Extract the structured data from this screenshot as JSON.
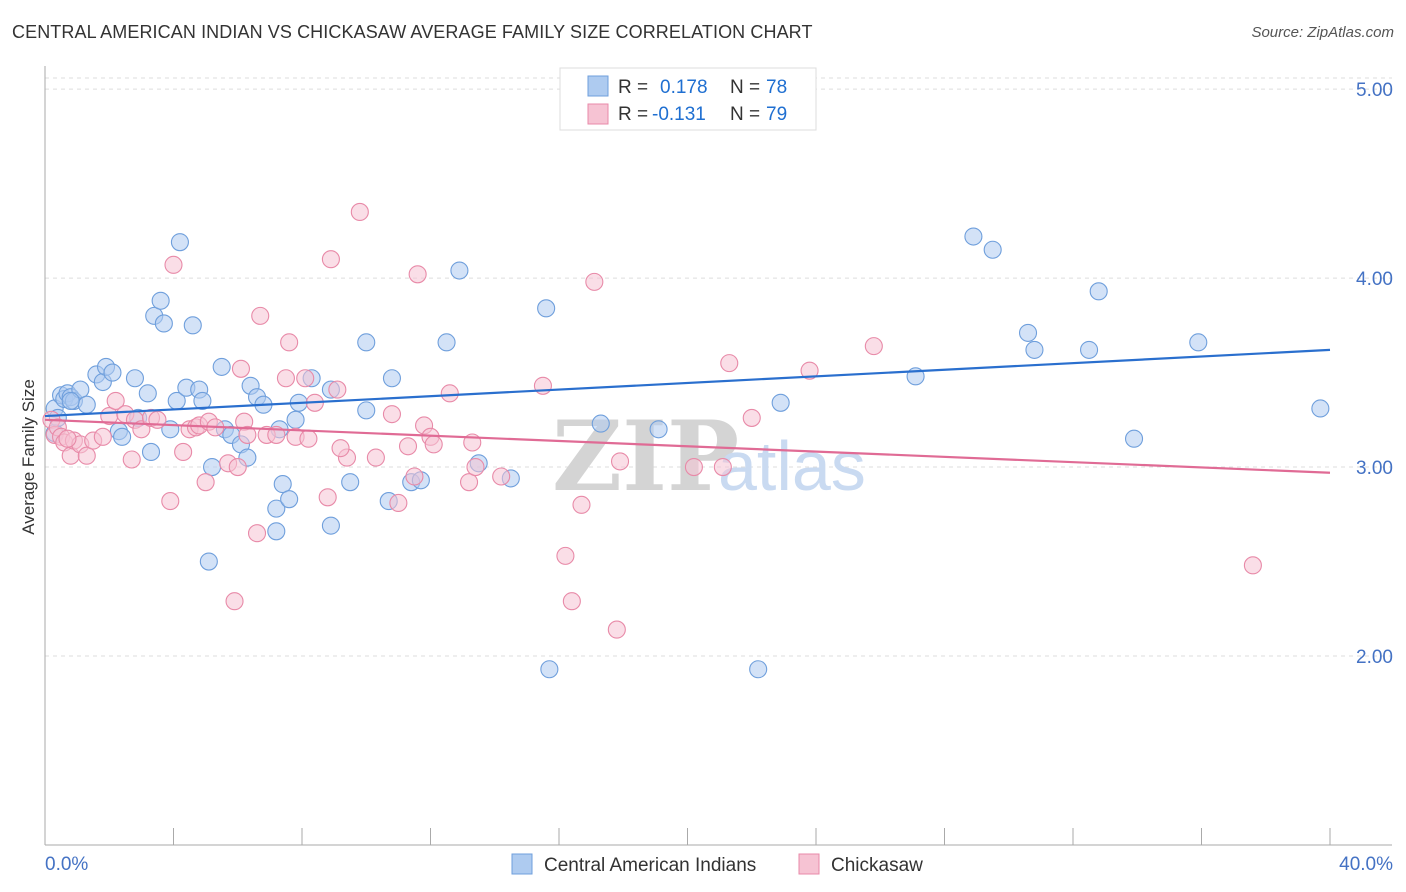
{
  "title": "CENTRAL AMERICAN INDIAN VS CHICKASAW AVERAGE FAMILY SIZE CORRELATION CHART",
  "source": "Source: ZipAtlas.com",
  "watermark": {
    "zip": "ZIP",
    "atlas": "atlas"
  },
  "legend": {
    "r_label": "R =",
    "n_label": "N =",
    "rows": [
      {
        "r": "0.178",
        "n": "78"
      },
      {
        "r": "-0.131",
        "n": "79"
      }
    ]
  },
  "colors": {
    "blue_fill": "#aecbf0",
    "blue_stroke": "#6f9fdc",
    "blue_line": "#2a6fce",
    "pink_fill": "#f6c3d3",
    "pink_stroke": "#e88aa8",
    "pink_line": "#e06b95",
    "grid": "#dddddd",
    "tick_text": "#4472c4"
  },
  "chart_data": {
    "type": "scatter",
    "xlabel": "",
    "ylabel": "Average Family Size",
    "xlim": [
      0,
      40
    ],
    "ylim": [
      1.0,
      5.08
    ],
    "x_tick_labels": [
      "0.0%",
      "40.0%"
    ],
    "y_ticks": [
      2.0,
      3.0,
      4.0,
      5.0
    ],
    "y_tick_labels": [
      "2.00",
      "3.00",
      "4.00",
      "5.00"
    ],
    "grid": "horizontal dashed",
    "series": [
      {
        "name": "Central American Indians",
        "color": "blue",
        "trend": [
          [
            0,
            3.27
          ],
          [
            40,
            3.62
          ]
        ],
        "points": [
          [
            0.3,
            3.18
          ],
          [
            0.3,
            3.31
          ],
          [
            0.4,
            3.26
          ],
          [
            0.5,
            3.38
          ],
          [
            0.6,
            3.36
          ],
          [
            0.7,
            3.39
          ],
          [
            0.8,
            3.37
          ],
          [
            0.9,
            3.35
          ],
          [
            1.1,
            3.41
          ],
          [
            1.3,
            3.33
          ],
          [
            1.6,
            3.49
          ],
          [
            1.8,
            3.45
          ],
          [
            1.9,
            3.53
          ],
          [
            2.1,
            3.5
          ],
          [
            2.3,
            3.19
          ],
          [
            2.4,
            3.16
          ],
          [
            2.8,
            3.47
          ],
          [
            2.9,
            3.26
          ],
          [
            3.2,
            3.39
          ],
          [
            3.3,
            3.08
          ],
          [
            3.4,
            3.8
          ],
          [
            3.6,
            3.88
          ],
          [
            3.7,
            3.76
          ],
          [
            3.9,
            3.2
          ],
          [
            4.1,
            3.35
          ],
          [
            4.2,
            4.19
          ],
          [
            4.4,
            3.42
          ],
          [
            4.6,
            3.75
          ],
          [
            4.8,
            3.41
          ],
          [
            4.9,
            3.35
          ],
          [
            5.1,
            2.5
          ],
          [
            5.2,
            3.0
          ],
          [
            5.5,
            3.53
          ],
          [
            5.6,
            3.2
          ],
          [
            5.8,
            3.17
          ],
          [
            6.1,
            3.12
          ],
          [
            6.3,
            3.05
          ],
          [
            6.4,
            3.43
          ],
          [
            6.6,
            3.37
          ],
          [
            6.8,
            3.33
          ],
          [
            7.2,
            2.78
          ],
          [
            7.2,
            2.66
          ],
          [
            7.4,
            2.91
          ],
          [
            7.6,
            2.83
          ],
          [
            7.8,
            3.25
          ],
          [
            7.9,
            3.34
          ],
          [
            8.3,
            3.47
          ],
          [
            8.9,
            3.41
          ],
          [
            8.9,
            2.69
          ],
          [
            9.5,
            2.92
          ],
          [
            10.0,
            3.66
          ],
          [
            10.0,
            3.3
          ],
          [
            10.7,
            2.82
          ],
          [
            10.8,
            3.47
          ],
          [
            11.4,
            2.92
          ],
          [
            11.7,
            2.93
          ],
          [
            12.5,
            3.66
          ],
          [
            12.9,
            4.04
          ],
          [
            13.5,
            3.02
          ],
          [
            14.5,
            2.94
          ],
          [
            15.6,
            3.84
          ],
          [
            15.7,
            1.93
          ],
          [
            17.3,
            3.23
          ],
          [
            19.1,
            3.2
          ],
          [
            22.2,
            1.93
          ],
          [
            22.9,
            3.34
          ],
          [
            27.1,
            3.48
          ],
          [
            28.9,
            4.22
          ],
          [
            29.5,
            4.15
          ],
          [
            30.6,
            3.71
          ],
          [
            30.8,
            3.62
          ],
          [
            32.5,
            3.62
          ],
          [
            32.8,
            3.93
          ],
          [
            33.9,
            3.15
          ],
          [
            35.9,
            3.66
          ],
          [
            39.7,
            3.31
          ],
          [
            0.8,
            3.35
          ],
          [
            7.3,
            3.2
          ]
        ]
      },
      {
        "name": "Chickasaw",
        "color": "pink",
        "trend": [
          [
            0,
            3.25
          ],
          [
            40,
            2.97
          ]
        ],
        "points": [
          [
            0.2,
            3.25
          ],
          [
            0.3,
            3.17
          ],
          [
            0.4,
            3.21
          ],
          [
            0.5,
            3.16
          ],
          [
            0.6,
            3.13
          ],
          [
            0.8,
            3.06
          ],
          [
            0.9,
            3.14
          ],
          [
            1.1,
            3.12
          ],
          [
            1.3,
            3.06
          ],
          [
            1.5,
            3.14
          ],
          [
            1.8,
            3.16
          ],
          [
            2.0,
            3.27
          ],
          [
            2.2,
            3.35
          ],
          [
            2.5,
            3.28
          ],
          [
            2.7,
            3.04
          ],
          [
            2.8,
            3.25
          ],
          [
            3.0,
            3.2
          ],
          [
            3.3,
            3.26
          ],
          [
            3.5,
            3.25
          ],
          [
            3.9,
            2.82
          ],
          [
            4.0,
            4.07
          ],
          [
            4.3,
            3.08
          ],
          [
            4.5,
            3.2
          ],
          [
            4.7,
            3.21
          ],
          [
            4.8,
            3.22
          ],
          [
            5.0,
            2.92
          ],
          [
            5.1,
            3.24
          ],
          [
            5.3,
            3.21
          ],
          [
            5.7,
            3.02
          ],
          [
            5.9,
            2.29
          ],
          [
            6.1,
            3.52
          ],
          [
            6.2,
            3.24
          ],
          [
            6.3,
            3.17
          ],
          [
            6.6,
            2.65
          ],
          [
            6.7,
            3.8
          ],
          [
            6.9,
            3.17
          ],
          [
            7.2,
            3.17
          ],
          [
            7.5,
            3.47
          ],
          [
            7.6,
            3.66
          ],
          [
            7.8,
            3.16
          ],
          [
            8.1,
            3.47
          ],
          [
            8.2,
            3.15
          ],
          [
            8.4,
            3.34
          ],
          [
            8.8,
            2.84
          ],
          [
            8.9,
            4.1
          ],
          [
            9.1,
            3.41
          ],
          [
            9.4,
            3.05
          ],
          [
            9.8,
            4.35
          ],
          [
            10.3,
            3.05
          ],
          [
            10.8,
            3.28
          ],
          [
            11.0,
            2.81
          ],
          [
            11.3,
            3.11
          ],
          [
            11.5,
            2.95
          ],
          [
            11.6,
            4.02
          ],
          [
            11.8,
            3.22
          ],
          [
            12.0,
            3.16
          ],
          [
            12.1,
            3.12
          ],
          [
            12.6,
            3.39
          ],
          [
            13.2,
            2.92
          ],
          [
            13.3,
            3.13
          ],
          [
            13.4,
            3.0
          ],
          [
            14.2,
            2.95
          ],
          [
            15.5,
            3.43
          ],
          [
            16.2,
            2.53
          ],
          [
            16.4,
            2.29
          ],
          [
            16.7,
            2.8
          ],
          [
            17.1,
            3.98
          ],
          [
            17.8,
            2.14
          ],
          [
            17.9,
            3.03
          ],
          [
            20.2,
            3.0
          ],
          [
            21.1,
            3.0
          ],
          [
            21.3,
            3.55
          ],
          [
            22.0,
            3.26
          ],
          [
            23.8,
            3.51
          ],
          [
            25.8,
            3.64
          ],
          [
            37.6,
            2.48
          ],
          [
            0.7,
            3.15
          ],
          [
            6.0,
            3.0
          ],
          [
            9.2,
            3.1
          ]
        ]
      }
    ]
  }
}
